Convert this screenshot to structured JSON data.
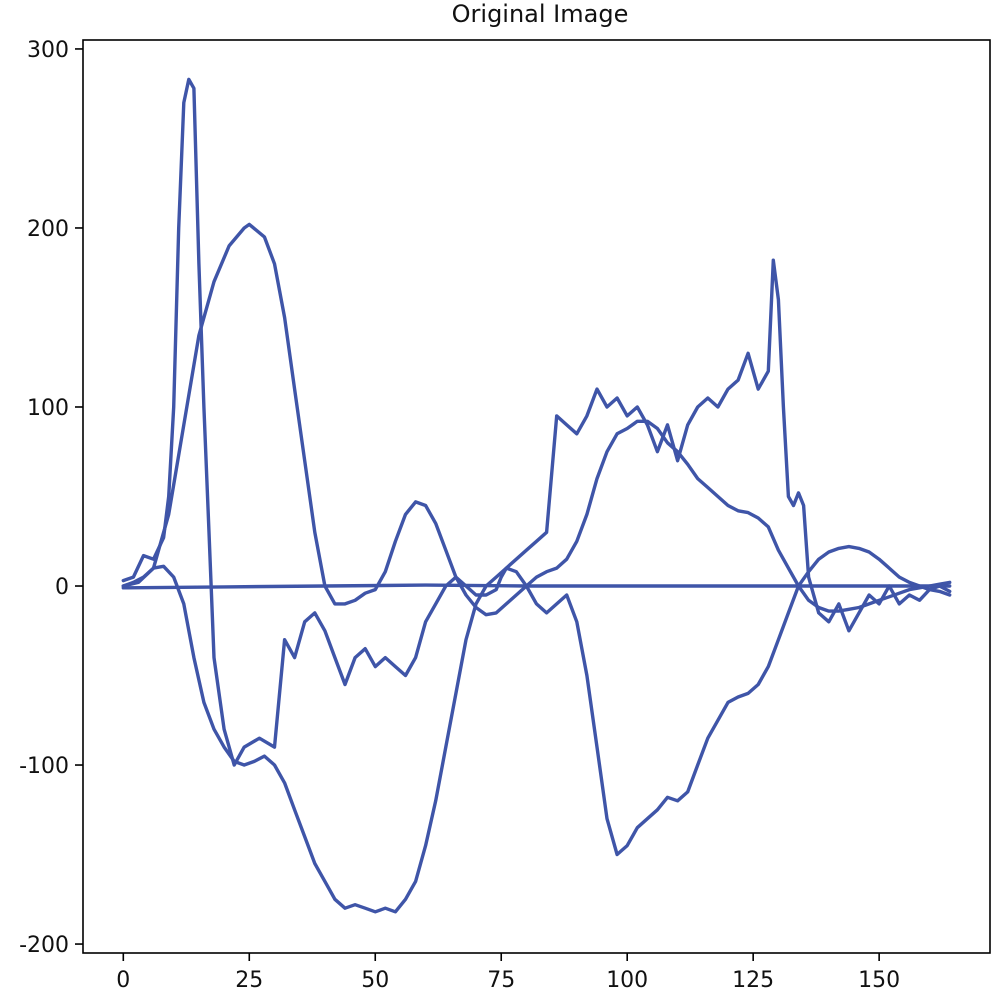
{
  "chart_data": {
    "type": "line",
    "title": "Original Image",
    "xlabel": "",
    "ylabel": "",
    "xlim": [
      -8,
      172
    ],
    "ylim": [
      -205,
      305
    ],
    "xticks": [
      0,
      25,
      50,
      75,
      100,
      125,
      150
    ],
    "yticks": [
      -200,
      -100,
      0,
      100,
      200,
      300
    ],
    "grid": false,
    "legend": "none",
    "line_color": "#3f55a8",
    "series": [
      {
        "values": [
          [
            0,
            3
          ],
          [
            2,
            5
          ],
          [
            4,
            17
          ],
          [
            6,
            15
          ],
          [
            8,
            27
          ],
          [
            9,
            50
          ],
          [
            10,
            100
          ],
          [
            11,
            200
          ],
          [
            12,
            270
          ],
          [
            13,
            283
          ],
          [
            14,
            278
          ],
          [
            15,
            180
          ],
          [
            16,
            100
          ],
          [
            17,
            30
          ],
          [
            18,
            -40
          ],
          [
            20,
            -80
          ],
          [
            22,
            -100
          ],
          [
            24,
            -90
          ],
          [
            27,
            -85
          ],
          [
            30,
            -90
          ],
          [
            32,
            -30
          ],
          [
            34,
            -40
          ],
          [
            36,
            -20
          ],
          [
            38,
            -15
          ],
          [
            40,
            -25
          ],
          [
            42,
            -40
          ],
          [
            44,
            -55
          ],
          [
            46,
            -40
          ],
          [
            48,
            -35
          ],
          [
            50,
            -45
          ],
          [
            52,
            -40
          ],
          [
            54,
            -45
          ],
          [
            56,
            -50
          ],
          [
            58,
            -40
          ],
          [
            60,
            -20
          ],
          [
            62,
            -10
          ],
          [
            64,
            0
          ],
          [
            66,
            5
          ],
          [
            68,
            0
          ],
          [
            70,
            -5
          ],
          [
            72,
            -5
          ],
          [
            74,
            -2
          ],
          [
            75,
            5
          ],
          [
            76,
            10
          ],
          [
            78,
            15
          ],
          [
            80,
            20
          ],
          [
            82,
            25
          ],
          [
            84,
            30
          ],
          [
            86,
            95
          ],
          [
            88,
            90
          ],
          [
            90,
            85
          ],
          [
            92,
            95
          ],
          [
            94,
            110
          ],
          [
            96,
            100
          ],
          [
            98,
            105
          ],
          [
            100,
            95
          ],
          [
            102,
            100
          ],
          [
            104,
            90
          ],
          [
            106,
            75
          ],
          [
            108,
            90
          ],
          [
            110,
            70
          ],
          [
            112,
            90
          ],
          [
            114,
            100
          ],
          [
            116,
            105
          ],
          [
            118,
            100
          ],
          [
            120,
            110
          ],
          [
            122,
            115
          ],
          [
            124,
            130
          ],
          [
            126,
            110
          ],
          [
            128,
            120
          ],
          [
            129,
            182
          ],
          [
            130,
            160
          ],
          [
            131,
            100
          ],
          [
            132,
            50
          ],
          [
            133,
            45
          ],
          [
            134,
            52
          ],
          [
            135,
            45
          ],
          [
            136,
            5
          ],
          [
            138,
            -15
          ],
          [
            140,
            -20
          ],
          [
            142,
            -10
          ],
          [
            144,
            -25
          ],
          [
            146,
            -15
          ],
          [
            148,
            -5
          ],
          [
            150,
            -10
          ],
          [
            152,
            0
          ],
          [
            154,
            -10
          ],
          [
            156,
            -5
          ],
          [
            158,
            -8
          ],
          [
            160,
            -2
          ],
          [
            162,
            0
          ],
          [
            164,
            -3
          ]
        ]
      },
      {
        "values": [
          [
            0,
            0
          ],
          [
            3,
            2
          ],
          [
            6,
            10
          ],
          [
            9,
            40
          ],
          [
            12,
            90
          ],
          [
            15,
            140
          ],
          [
            18,
            170
          ],
          [
            21,
            190
          ],
          [
            24,
            200
          ],
          [
            25,
            202
          ],
          [
            28,
            195
          ],
          [
            30,
            180
          ],
          [
            32,
            150
          ],
          [
            34,
            110
          ],
          [
            36,
            70
          ],
          [
            38,
            30
          ],
          [
            40,
            0
          ],
          [
            42,
            -10
          ],
          [
            44,
            -10
          ],
          [
            46,
            -8
          ],
          [
            48,
            -4
          ],
          [
            50,
            -2
          ],
          [
            52,
            8
          ],
          [
            54,
            25
          ],
          [
            56,
            40
          ],
          [
            58,
            47
          ],
          [
            60,
            45
          ],
          [
            62,
            35
          ],
          [
            64,
            20
          ],
          [
            66,
            5
          ],
          [
            68,
            -5
          ],
          [
            70,
            -12
          ],
          [
            72,
            -16
          ],
          [
            74,
            -15
          ],
          [
            76,
            -10
          ],
          [
            78,
            -5
          ],
          [
            80,
            0
          ],
          [
            82,
            5
          ],
          [
            84,
            8
          ],
          [
            86,
            10
          ],
          [
            88,
            15
          ],
          [
            90,
            25
          ],
          [
            92,
            40
          ],
          [
            94,
            60
          ],
          [
            96,
            75
          ],
          [
            98,
            85
          ],
          [
            100,
            88
          ],
          [
            102,
            92
          ],
          [
            104,
            92
          ],
          [
            106,
            88
          ],
          [
            108,
            80
          ],
          [
            110,
            75
          ],
          [
            112,
            68
          ],
          [
            114,
            60
          ],
          [
            116,
            55
          ],
          [
            118,
            50
          ],
          [
            120,
            45
          ],
          [
            122,
            42
          ],
          [
            124,
            41
          ],
          [
            126,
            38
          ],
          [
            128,
            33
          ],
          [
            130,
            20
          ],
          [
            132,
            10
          ],
          [
            134,
            0
          ],
          [
            136,
            -8
          ],
          [
            138,
            -12
          ],
          [
            140,
            -14
          ],
          [
            142,
            -14
          ],
          [
            144,
            -13
          ],
          [
            146,
            -12
          ],
          [
            148,
            -10
          ],
          [
            150,
            -8
          ],
          [
            152,
            -6
          ],
          [
            154,
            -4
          ],
          [
            156,
            -2
          ],
          [
            158,
            -1
          ],
          [
            160,
            0
          ],
          [
            162,
            1
          ],
          [
            164,
            2
          ]
        ]
      },
      {
        "values": [
          [
            0,
            0
          ],
          [
            2,
            2
          ],
          [
            4,
            5
          ],
          [
            6,
            10
          ],
          [
            8,
            11
          ],
          [
            10,
            5
          ],
          [
            12,
            -10
          ],
          [
            14,
            -40
          ],
          [
            16,
            -65
          ],
          [
            18,
            -80
          ],
          [
            20,
            -90
          ],
          [
            22,
            -98
          ],
          [
            24,
            -100
          ],
          [
            26,
            -98
          ],
          [
            28,
            -95
          ],
          [
            30,
            -100
          ],
          [
            32,
            -110
          ],
          [
            34,
            -125
          ],
          [
            36,
            -140
          ],
          [
            38,
            -155
          ],
          [
            40,
            -165
          ],
          [
            42,
            -175
          ],
          [
            44,
            -180
          ],
          [
            46,
            -178
          ],
          [
            48,
            -180
          ],
          [
            50,
            -182
          ],
          [
            52,
            -180
          ],
          [
            54,
            -182
          ],
          [
            56,
            -175
          ],
          [
            58,
            -165
          ],
          [
            60,
            -145
          ],
          [
            62,
            -120
          ],
          [
            64,
            -90
          ],
          [
            66,
            -60
          ],
          [
            68,
            -30
          ],
          [
            70,
            -10
          ],
          [
            72,
            0
          ],
          [
            74,
            5
          ],
          [
            76,
            10
          ],
          [
            78,
            8
          ],
          [
            80,
            0
          ],
          [
            82,
            -10
          ],
          [
            84,
            -15
          ],
          [
            86,
            -10
          ],
          [
            88,
            -5
          ],
          [
            90,
            -20
          ],
          [
            92,
            -50
          ],
          [
            94,
            -90
          ],
          [
            96,
            -130
          ],
          [
            98,
            -150
          ],
          [
            100,
            -145
          ],
          [
            102,
            -135
          ],
          [
            104,
            -130
          ],
          [
            106,
            -125
          ],
          [
            108,
            -118
          ],
          [
            110,
            -120
          ],
          [
            112,
            -115
          ],
          [
            114,
            -100
          ],
          [
            116,
            -85
          ],
          [
            118,
            -75
          ],
          [
            120,
            -65
          ],
          [
            122,
            -62
          ],
          [
            124,
            -60
          ],
          [
            126,
            -55
          ],
          [
            128,
            -45
          ],
          [
            130,
            -30
          ],
          [
            132,
            -15
          ],
          [
            134,
            0
          ],
          [
            136,
            8
          ],
          [
            138,
            15
          ],
          [
            140,
            19
          ],
          [
            142,
            21
          ],
          [
            144,
            22
          ],
          [
            146,
            21
          ],
          [
            148,
            19
          ],
          [
            150,
            15
          ],
          [
            152,
            10
          ],
          [
            154,
            5
          ],
          [
            156,
            2
          ],
          [
            158,
            0
          ],
          [
            160,
            -2
          ],
          [
            162,
            -3
          ],
          [
            164,
            -5
          ]
        ]
      },
      {
        "values": [
          [
            0,
            -1
          ],
          [
            20,
            -0.5
          ],
          [
            40,
            0
          ],
          [
            60,
            0.5
          ],
          [
            80,
            0
          ],
          [
            100,
            0
          ],
          [
            120,
            0
          ],
          [
            140,
            0
          ],
          [
            164,
            0
          ]
        ]
      }
    ]
  }
}
